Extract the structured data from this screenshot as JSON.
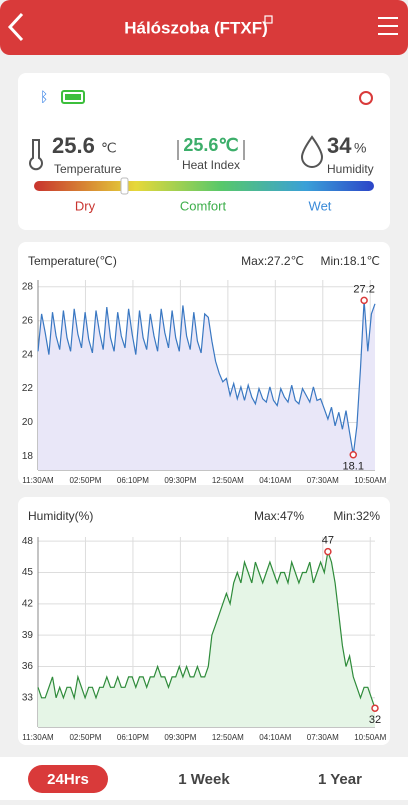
{
  "header": {
    "title": "Hálószoba (FTXF)"
  },
  "status": {
    "temperature": {
      "value": 25.6,
      "unit": "℃",
      "label": "Temperature"
    },
    "heat_index": {
      "value": "25.6℃",
      "label": "Heat Index"
    },
    "humidity": {
      "value": 34,
      "unit": "%",
      "label": "Humidity"
    },
    "scale": [
      "Dry",
      "Comfort",
      "Wet"
    ]
  },
  "chart_data": [
    {
      "type": "line",
      "title": "Temperature(℃)",
      "max_text": "Max:27.2℃",
      "min_text": "Min:18.1℃",
      "color": "#3a78c2",
      "fill": "#e9e7f8",
      "ylim": [
        17.2,
        28.4
      ],
      "yticks": [
        18,
        20,
        22,
        24,
        26,
        28
      ],
      "grid": true,
      "xtick_labels": [
        "11:30AM",
        "02:50PM",
        "06:10PM",
        "09:30PM",
        "12:50AM",
        "04:10AM",
        "07:30AM",
        "10:50AM"
      ],
      "max_label": "27.2",
      "min_label": "18.1",
      "values": [
        24.2,
        26.4,
        25.3,
        24.0,
        26.5,
        25.1,
        24.3,
        26.6,
        25.0,
        24.2,
        26.7,
        25.2,
        24.4,
        26.5,
        24.9,
        24.1,
        26.6,
        25.3,
        24.3,
        26.8,
        25.0,
        24.2,
        26.5,
        25.1,
        24.4,
        26.7,
        25.2,
        24.0,
        26.6,
        25.0,
        24.3,
        26.4,
        25.1,
        24.2,
        26.7,
        25.3,
        24.4,
        26.6,
        25.0,
        24.2,
        26.9,
        25.1,
        24.3,
        26.5,
        24.8,
        24.1,
        26.4,
        26.2,
        24.8,
        23.6,
        22.9,
        22.4,
        22.6,
        21.6,
        22.3,
        21.4,
        22.1,
        21.3,
        22.2,
        21.5,
        21.1,
        22.0,
        21.4,
        21.2,
        22.1,
        21.3,
        21.0,
        22.0,
        21.5,
        21.2,
        22.2,
        21.3,
        21.1,
        22.0,
        21.6,
        21.2,
        22.1,
        21.3,
        21.4,
        20.8,
        20.2,
        20.9,
        19.8,
        20.6,
        19.6,
        20.7,
        19.4,
        18.1,
        19.8,
        23.2,
        27.2,
        24.2,
        26.4,
        27.0
      ]
    },
    {
      "type": "line",
      "title": "Humidity(%)",
      "max_text": "Max:47%",
      "min_text": "Min:32%",
      "color": "#2e8b3a",
      "fill": "#e5f5e6",
      "ylim": [
        30.2,
        48.4
      ],
      "yticks": [
        33,
        36,
        39,
        42,
        45,
        48
      ],
      "grid": true,
      "xtick_labels": [
        "11:30AM",
        "02:50PM",
        "06:10PM",
        "09:30PM",
        "12:50AM",
        "04:10AM",
        "07:30AM",
        "10:50AM"
      ],
      "max_label": "47",
      "min_label": "32",
      "values": [
        34,
        33,
        33,
        34,
        35,
        33,
        34,
        33,
        34,
        34,
        33,
        35,
        34,
        33,
        34,
        34,
        33,
        34,
        34,
        35,
        34,
        34,
        35,
        34,
        34,
        35,
        35,
        34,
        35,
        35,
        34,
        35,
        35,
        36,
        35,
        35,
        34,
        35,
        35,
        36,
        35,
        36,
        35,
        35,
        36,
        35,
        35,
        36,
        39,
        40,
        41,
        42,
        43,
        42,
        44,
        45,
        44,
        46,
        45,
        44,
        46,
        45,
        44,
        45,
        46,
        45,
        44,
        45,
        45,
        44,
        46,
        45,
        44,
        45,
        45,
        46,
        44,
        45,
        46,
        45,
        47,
        46,
        44,
        41,
        38,
        36,
        37,
        35,
        34,
        33,
        34,
        34,
        33,
        32
      ]
    }
  ],
  "tabs": [
    "24Hrs",
    "1 Week",
    "1 Year"
  ]
}
